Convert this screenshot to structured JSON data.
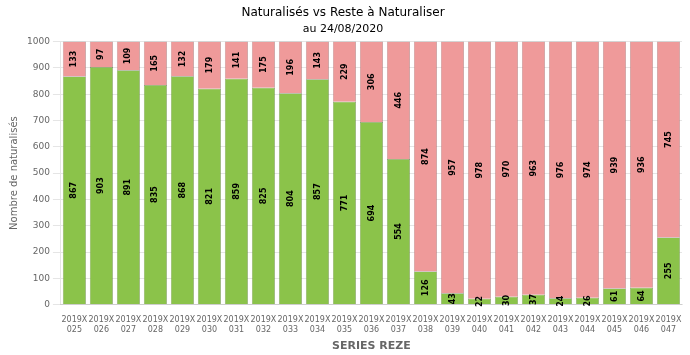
{
  "chart_data": {
    "type": "bar",
    "title": "Naturalisés vs Reste à Naturaliser",
    "subtitle": "au 24/08/2020",
    "x_label": "SERIES REZE",
    "y_label": "Nombre de naturalisés",
    "categories": [
      "2019X\n025",
      "2019X\n026",
      "2019X\n027",
      "2019X\n028",
      "2019X\n029",
      "2019X\n030",
      "2019X\n031",
      "2019X\n032",
      "2019X\n033",
      "2019X\n034",
      "2019X\n035",
      "2019X\n036",
      "2019X\n037",
      "2019X\n038",
      "2019X\n039",
      "2019X\n040",
      "2019X\n041",
      "2019X\n042",
      "2019X\n043",
      "2019X\n044",
      "2019X\n045",
      "2019X\n046",
      "2019X\n047"
    ],
    "series": [
      {
        "color": "#8BC34A",
        "values": [
          867,
          903,
          891,
          835,
          868,
          821,
          859,
          825,
          804,
          857,
          771,
          694,
          554,
          126,
          43,
          22,
          30,
          37,
          24,
          26,
          61,
          64,
          255
        ]
      },
      {
        "color": "#EF9A9A",
        "values": [
          133,
          97,
          109,
          165,
          132,
          179,
          141,
          175,
          196,
          143,
          229,
          306,
          446,
          874,
          957,
          978,
          970,
          963,
          976,
          974,
          939,
          936,
          745
        ]
      }
    ],
    "stacked": true,
    "data_labels": true,
    "ylim": [
      0,
      1000
    ],
    "yticks": [
      0,
      100,
      200,
      300,
      400,
      500,
      600,
      700,
      800,
      900,
      1000
    ],
    "grid": true
  }
}
